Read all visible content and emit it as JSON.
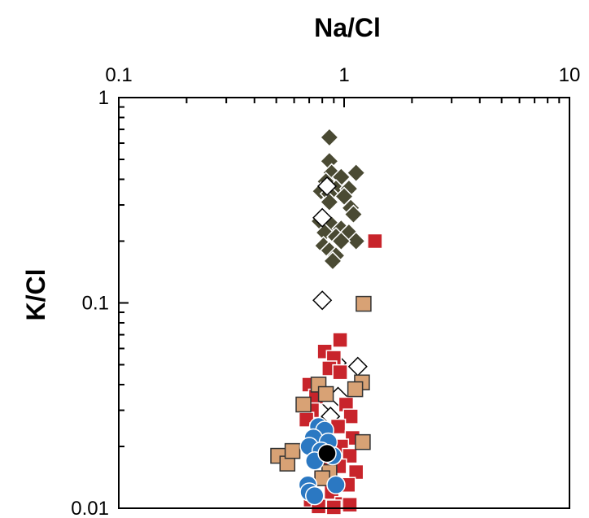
{
  "chart_data": {
    "type": "scatter",
    "xlabel": "Na/Cl",
    "ylabel": "K/Cl",
    "x_scale": "log",
    "y_scale": "log",
    "xlim": [
      0.1,
      10
    ],
    "ylim": [
      0.01,
      1
    ],
    "x_axis_position": "top",
    "x_tick_labels": [
      "0.1",
      "1",
      "10"
    ],
    "y_tick_labels": [
      "1",
      "0.1",
      "0.01"
    ],
    "grid": false,
    "legend": "none",
    "series": [
      {
        "marker": "diamond",
        "color": "#4a4a33",
        "stroke": "#ffffff",
        "points": [
          [
            0.86,
            0.64
          ],
          [
            0.86,
            0.49
          ],
          [
            0.88,
            0.43
          ],
          [
            1.13,
            0.43
          ],
          [
            0.97,
            0.41
          ],
          [
            0.83,
            0.39
          ],
          [
            0.92,
            0.36
          ],
          [
            1.05,
            0.36
          ],
          [
            0.79,
            0.35
          ],
          [
            0.86,
            0.34
          ],
          [
            1.0,
            0.33
          ],
          [
            0.86,
            0.31
          ],
          [
            1.07,
            0.29
          ],
          [
            1.1,
            0.27
          ],
          [
            0.78,
            0.25
          ],
          [
            0.88,
            0.24
          ],
          [
            0.97,
            0.23
          ],
          [
            0.82,
            0.22
          ],
          [
            1.05,
            0.22
          ],
          [
            0.92,
            0.21
          ],
          [
            0.81,
            0.19
          ],
          [
            1.13,
            0.2
          ],
          [
            0.97,
            0.2
          ],
          [
            0.86,
            0.18
          ],
          [
            0.92,
            0.17
          ],
          [
            0.89,
            0.16
          ]
        ]
      },
      {
        "marker": "diamond",
        "color": "#ffffff",
        "stroke": "#000000",
        "points": [
          [
            0.8,
            0.103
          ],
          [
            0.84,
            0.37
          ],
          [
            0.8,
            0.26
          ],
          [
            0.93,
            0.051
          ],
          [
            1.15,
            0.049
          ],
          [
            0.8,
            0.037
          ],
          [
            0.94,
            0.035
          ],
          [
            0.78,
            0.03
          ],
          [
            0.87,
            0.028
          ]
        ]
      },
      {
        "marker": "square",
        "color": "#c8242b",
        "stroke": "#ffffff",
        "points": [
          [
            1.37,
            0.2
          ],
          [
            0.96,
            0.066
          ],
          [
            0.82,
            0.058
          ],
          [
            0.9,
            0.054
          ],
          [
            0.86,
            0.048
          ],
          [
            0.96,
            0.046
          ],
          [
            0.7,
            0.04
          ],
          [
            0.78,
            0.036
          ],
          [
            0.75,
            0.035
          ],
          [
            1.02,
            0.032
          ],
          [
            0.72,
            0.03
          ],
          [
            1.07,
            0.028
          ],
          [
            0.68,
            0.027
          ],
          [
            0.94,
            0.025
          ],
          [
            0.76,
            0.024
          ],
          [
            1.09,
            0.022
          ],
          [
            0.97,
            0.02
          ],
          [
            0.73,
            0.019
          ],
          [
            1.06,
            0.018
          ],
          [
            0.83,
            0.017
          ],
          [
            0.95,
            0.016
          ],
          [
            1.13,
            0.015
          ],
          [
            0.79,
            0.014
          ],
          [
            1.04,
            0.013
          ],
          [
            0.88,
            0.012
          ],
          [
            0.71,
            0.011
          ],
          [
            0.98,
            0.0105
          ],
          [
            1.06,
            0.0104
          ],
          [
            0.77,
            0.0102
          ],
          [
            0.9,
            0.0101
          ]
        ]
      },
      {
        "marker": "square",
        "color": "#d8a275",
        "stroke": "#333333",
        "points": [
          [
            1.22,
            0.099
          ],
          [
            0.77,
            0.04
          ],
          [
            1.2,
            0.041
          ],
          [
            1.12,
            0.038
          ],
          [
            0.83,
            0.036
          ],
          [
            0.66,
            0.032
          ],
          [
            1.21,
            0.021
          ],
          [
            0.51,
            0.018
          ],
          [
            0.56,
            0.0165
          ],
          [
            0.59,
            0.019
          ],
          [
            0.76,
            0.018
          ],
          [
            0.86,
            0.015
          ],
          [
            0.8,
            0.014
          ]
        ]
      },
      {
        "marker": "circle",
        "color": "#2b78c2",
        "stroke": "#ffffff",
        "points": [
          [
            0.77,
            0.025
          ],
          [
            0.82,
            0.024
          ],
          [
            0.73,
            0.022
          ],
          [
            0.85,
            0.021
          ],
          [
            0.7,
            0.02
          ],
          [
            0.79,
            0.019
          ],
          [
            0.89,
            0.018
          ],
          [
            0.74,
            0.017
          ],
          [
            0.69,
            0.013
          ],
          [
            0.92,
            0.013
          ],
          [
            0.7,
            0.012
          ],
          [
            0.74,
            0.0115
          ]
        ]
      },
      {
        "marker": "circle",
        "color": "#000000",
        "stroke": "#ffffff",
        "points": [
          [
            0.84,
            0.0185
          ]
        ]
      }
    ]
  }
}
